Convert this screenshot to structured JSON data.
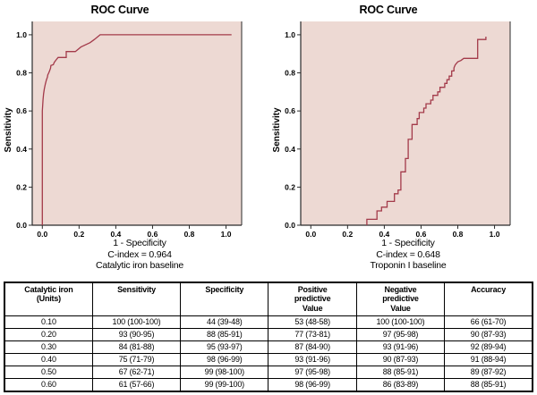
{
  "colors": {
    "plot_bg": "#edd9d3",
    "curve": "#a33a4a",
    "axis": "#2b2b2b",
    "text": "#000000"
  },
  "chart_data": [
    {
      "type": "line",
      "title": "ROC Curve",
      "xlabel": "1 - Specificity",
      "ylabel": "Sensitivity",
      "caption_cindex": "C-index = 0.964",
      "caption_baseline": "Catalytic iron baseline",
      "x_tick_labels": [
        "0.0",
        "0.2",
        "0.4",
        "0.6",
        "0.8",
        "1.0"
      ],
      "y_tick_labels": [
        "0.0",
        "0.2",
        "0.4",
        "0.6",
        "0.8",
        "1.0"
      ],
      "x_ticks": [
        0,
        0.2,
        0.4,
        0.6,
        0.8,
        1.0
      ],
      "y_ticks": [
        0,
        0.2,
        0.4,
        0.6,
        0.8,
        1.0
      ],
      "xlim": [
        -0.055,
        1.085
      ],
      "ylim": [
        0,
        1.07
      ],
      "grid": false,
      "legend": false,
      "series": [
        {
          "name": "ROC curve",
          "points": [
            [
              0,
              0
            ],
            [
              0,
              0.6
            ],
            [
              0.002,
              0.63
            ],
            [
              0.004,
              0.66
            ],
            [
              0.007,
              0.69
            ],
            [
              0.011,
              0.715
            ],
            [
              0.016,
              0.74
            ],
            [
              0.022,
              0.762
            ],
            [
              0.028,
              0.778
            ],
            [
              0.03,
              0.79
            ],
            [
              0.035,
              0.8
            ],
            [
              0.04,
              0.812
            ],
            [
              0.045,
              0.825
            ],
            [
              0.047,
              0.839
            ],
            [
              0.06,
              0.843
            ],
            [
              0.065,
              0.855
            ],
            [
              0.075,
              0.868
            ],
            [
              0.086,
              0.881
            ],
            [
              0.13,
              0.881
            ],
            [
              0.13,
              0.912
            ],
            [
              0.18,
              0.912
            ],
            [
              0.21,
              0.936
            ],
            [
              0.26,
              0.959
            ],
            [
              0.283,
              0.975
            ],
            [
              0.315,
              1.0
            ],
            [
              1.03,
              1.0
            ]
          ]
        }
      ]
    },
    {
      "type": "line",
      "title": "ROC Curve",
      "xlabel": "1 - Specificity",
      "ylabel": "Sensitivity",
      "caption_cindex": "C-index = 0.648",
      "caption_baseline": "Troponin I baseline",
      "x_tick_labels": [
        "0.0",
        "0.2",
        "0.4",
        "0.6",
        "0.8",
        "1.0"
      ],
      "y_tick_labels": [
        "0.0",
        "0.2",
        "0.4",
        "0.6",
        "0.8",
        "1.0"
      ],
      "x_ticks": [
        0,
        0.2,
        0.4,
        0.6,
        0.8,
        1.0
      ],
      "y_ticks": [
        0,
        0.2,
        0.4,
        0.6,
        0.8,
        1.0
      ],
      "xlim": [
        -0.055,
        1.085
      ],
      "ylim": [
        0,
        1.07
      ],
      "grid": false,
      "legend": false,
      "series": [
        {
          "name": "ROC curve",
          "points": [
            [
              0.305,
              0
            ],
            [
              0.305,
              0.031
            ],
            [
              0.36,
              0.031
            ],
            [
              0.36,
              0.075
            ],
            [
              0.385,
              0.075
            ],
            [
              0.385,
              0.095
            ],
            [
              0.415,
              0.095
            ],
            [
              0.415,
              0.125
            ],
            [
              0.455,
              0.125
            ],
            [
              0.455,
              0.165
            ],
            [
              0.475,
              0.165
            ],
            [
              0.475,
              0.185
            ],
            [
              0.49,
              0.185
            ],
            [
              0.49,
              0.28
            ],
            [
              0.515,
              0.28
            ],
            [
              0.515,
              0.35
            ],
            [
              0.53,
              0.35
            ],
            [
              0.53,
              0.451
            ],
            [
              0.551,
              0.451
            ],
            [
              0.551,
              0.529
            ],
            [
              0.579,
              0.529
            ],
            [
              0.579,
              0.56
            ],
            [
              0.59,
              0.56
            ],
            [
              0.59,
              0.592
            ],
            [
              0.615,
              0.592
            ],
            [
              0.615,
              0.615
            ],
            [
              0.627,
              0.615
            ],
            [
              0.627,
              0.638
            ],
            [
              0.653,
              0.638
            ],
            [
              0.653,
              0.657
            ],
            [
              0.665,
              0.657
            ],
            [
              0.665,
              0.682
            ],
            [
              0.691,
              0.682
            ],
            [
              0.691,
              0.7
            ],
            [
              0.703,
              0.7
            ],
            [
              0.703,
              0.724
            ],
            [
              0.729,
              0.724
            ],
            [
              0.729,
              0.745
            ],
            [
              0.741,
              0.745
            ],
            [
              0.741,
              0.764
            ],
            [
              0.753,
              0.764
            ],
            [
              0.753,
              0.783
            ],
            [
              0.767,
              0.783
            ],
            [
              0.767,
              0.81
            ],
            [
              0.779,
              0.81
            ],
            [
              0.779,
              0.826
            ],
            [
              0.786,
              0.842
            ],
            [
              0.8,
              0.858
            ],
            [
              0.817,
              0.865
            ],
            [
              0.832,
              0.876
            ],
            [
              0.908,
              0.876
            ],
            [
              0.908,
              0.975
            ],
            [
              0.953,
              0.975
            ],
            [
              0.953,
              0.99
            ]
          ]
        }
      ]
    }
  ],
  "table": {
    "headers": [
      "Catalytic iron\n(Units)",
      "Sensitivity",
      "Specificity",
      "Positive\npredictive\nValue",
      "Negative\npredictive\nValue",
      "Accuracy"
    ],
    "rows": [
      [
        "0.10",
        "100 (100-100)",
        "44 (39-48)",
        "53 (48-58)",
        "100 (100-100)",
        "66 (61-70)"
      ],
      [
        "0.20",
        "93 (90-95)",
        "88 (85-91)",
        "77 (73-81)",
        "97 (95-98)",
        "90 (87-93)"
      ],
      [
        "0.30",
        "84 (81-88)",
        "95 (93-97)",
        "87 (84-90)",
        "93 (91-96)",
        "92 (89-94)"
      ],
      [
        "0.40",
        "75 (71-79)",
        "98 (96-99)",
        "93 (91-96)",
        "90 (87-93)",
        "91 (88-94)"
      ],
      [
        "0.50",
        "67 (62-71)",
        "99 (98-100)",
        "97 (95-98)",
        "88 (85-91)",
        "89 (87-92)"
      ],
      [
        "0.60",
        "61 (57-66)",
        "99 (99-100)",
        "98 (96-99)",
        "86 (83-89)",
        "88 (85-91)"
      ]
    ]
  }
}
